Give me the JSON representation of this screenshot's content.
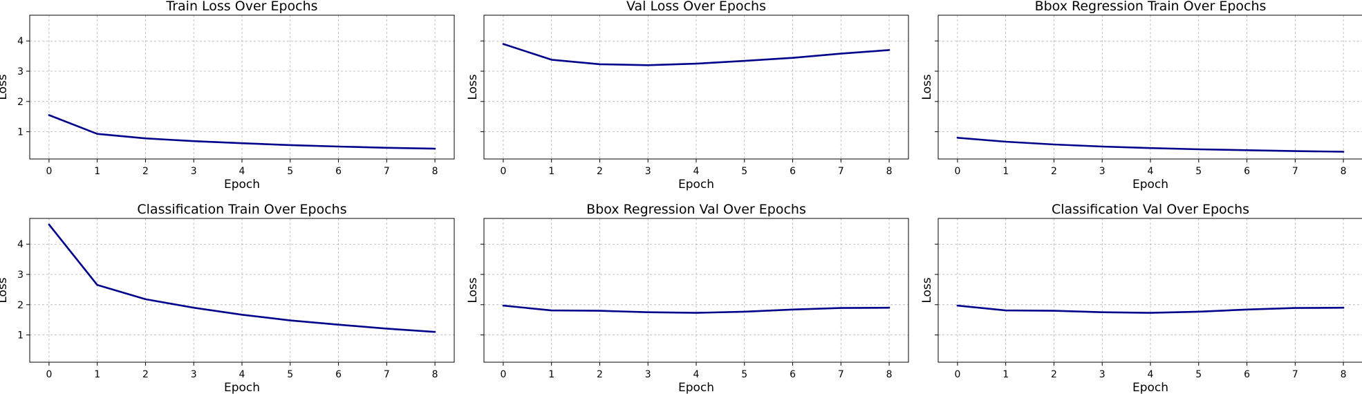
{
  "figure": {
    "line_color": "#00008b",
    "grid": true,
    "sharey": true
  },
  "chart_data": [
    {
      "type": "line",
      "title": "Train Loss Over Epochs",
      "xlabel": "Epoch",
      "ylabel": "Loss",
      "x": [
        0,
        1,
        2,
        3,
        4,
        5,
        6,
        7,
        8
      ],
      "xticks": [
        0,
        1,
        2,
        3,
        4,
        5,
        6,
        7,
        8
      ],
      "yticks": [
        1,
        2,
        3,
        4
      ],
      "ylim": [
        0.1,
        4.85
      ],
      "series": [
        {
          "values": [
            1.55,
            0.93,
            0.78,
            0.69,
            0.62,
            0.56,
            0.51,
            0.47,
            0.44
          ]
        }
      ]
    },
    {
      "type": "line",
      "title": "Val Loss Over Epochs",
      "xlabel": "Epoch",
      "ylabel": "Loss",
      "x": [
        0,
        1,
        2,
        3,
        4,
        5,
        6,
        7,
        8
      ],
      "xticks": [
        0,
        1,
        2,
        3,
        4,
        5,
        6,
        7,
        8
      ],
      "yticks": [
        1,
        2,
        3,
        4
      ],
      "ylim": [
        0.1,
        4.85
      ],
      "series": [
        {
          "values": [
            3.9,
            3.38,
            3.23,
            3.2,
            3.25,
            3.34,
            3.44,
            3.58,
            3.7
          ]
        }
      ]
    },
    {
      "type": "line",
      "title": "Bbox Regression Train Over Epochs",
      "xlabel": "Epoch",
      "ylabel": "Loss",
      "x": [
        0,
        1,
        2,
        3,
        4,
        5,
        6,
        7,
        8
      ],
      "xticks": [
        0,
        1,
        2,
        3,
        4,
        5,
        6,
        7,
        8
      ],
      "yticks": [
        1,
        2,
        3,
        4
      ],
      "ylim": [
        0.1,
        4.85
      ],
      "series": [
        {
          "values": [
            0.8,
            0.67,
            0.58,
            0.51,
            0.46,
            0.42,
            0.39,
            0.36,
            0.34
          ]
        }
      ]
    },
    {
      "type": "line",
      "title": "Classification Train Over Epochs",
      "xlabel": "Epoch",
      "ylabel": "Loss",
      "x": [
        0,
        1,
        2,
        3,
        4,
        5,
        6,
        7,
        8
      ],
      "xticks": [
        0,
        1,
        2,
        3,
        4,
        5,
        6,
        7,
        8
      ],
      "yticks": [
        1,
        2,
        3,
        4
      ],
      "ylim": [
        0.1,
        4.85
      ],
      "series": [
        {
          "values": [
            4.65,
            2.65,
            2.18,
            1.9,
            1.67,
            1.48,
            1.34,
            1.21,
            1.1
          ]
        }
      ]
    },
    {
      "type": "line",
      "title": "Bbox Regression Val Over Epochs",
      "xlabel": "Epoch",
      "ylabel": "Loss",
      "x": [
        0,
        1,
        2,
        3,
        4,
        5,
        6,
        7,
        8
      ],
      "xticks": [
        0,
        1,
        2,
        3,
        4,
        5,
        6,
        7,
        8
      ],
      "yticks": [
        1,
        2,
        3,
        4
      ],
      "ylim": [
        0.1,
        4.85
      ],
      "series": [
        {
          "values": [
            1.97,
            1.81,
            1.8,
            1.75,
            1.73,
            1.77,
            1.84,
            1.89,
            1.9
          ]
        }
      ]
    },
    {
      "type": "line",
      "title": "Classification Val Over Epochs",
      "xlabel": "Epoch",
      "ylabel": "Loss",
      "x": [
        0,
        1,
        2,
        3,
        4,
        5,
        6,
        7,
        8
      ],
      "xticks": [
        0,
        1,
        2,
        3,
        4,
        5,
        6,
        7,
        8
      ],
      "yticks": [
        1,
        2,
        3,
        4
      ],
      "ylim": [
        0.1,
        4.85
      ],
      "series": [
        {
          "values": [
            1.97,
            1.81,
            1.8,
            1.75,
            1.73,
            1.77,
            1.84,
            1.89,
            1.9
          ]
        }
      ]
    }
  ]
}
